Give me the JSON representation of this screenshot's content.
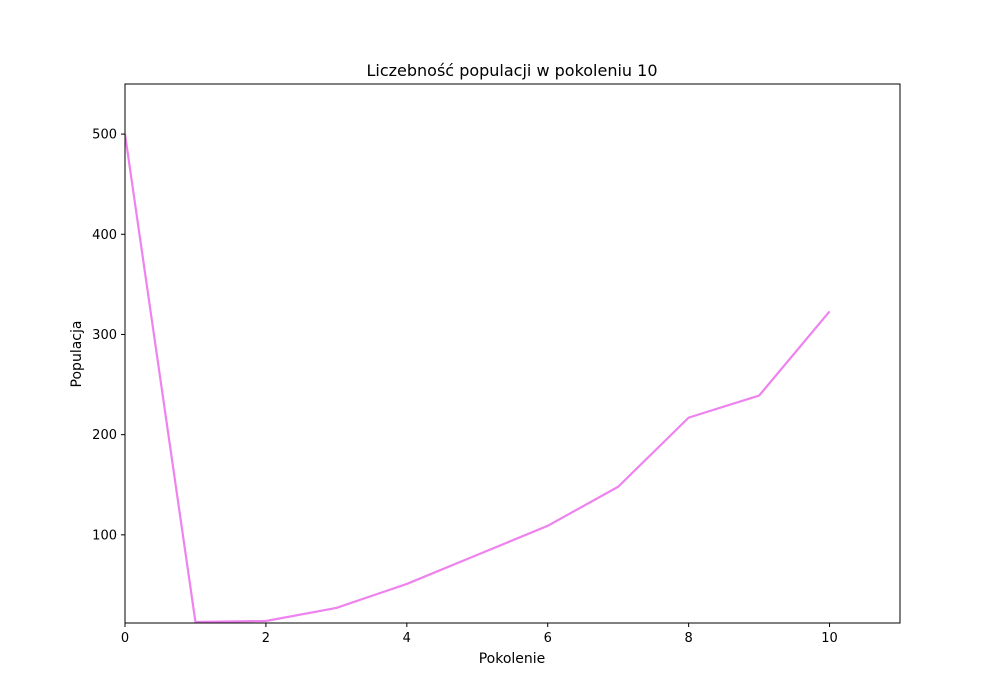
{
  "chart_data": {
    "type": "line",
    "title": "Liczebność populacji w pokoleniu 10",
    "xlabel": "Pokolenie",
    "ylabel": "Populacja",
    "xlim": [
      0,
      11
    ],
    "ylim": [
      12,
      550
    ],
    "xticks": [
      0,
      2,
      4,
      6,
      8,
      10
    ],
    "yticks": [
      100,
      200,
      300,
      400,
      500
    ],
    "grid": false,
    "series": [
      {
        "color": "#ee82ee",
        "x": [
          0,
          1,
          2,
          3,
          4,
          5,
          6,
          7,
          8,
          9,
          10
        ],
        "y": [
          500,
          13,
          14,
          27,
          51,
          80,
          109,
          148,
          217,
          239,
          323
        ]
      }
    ]
  }
}
